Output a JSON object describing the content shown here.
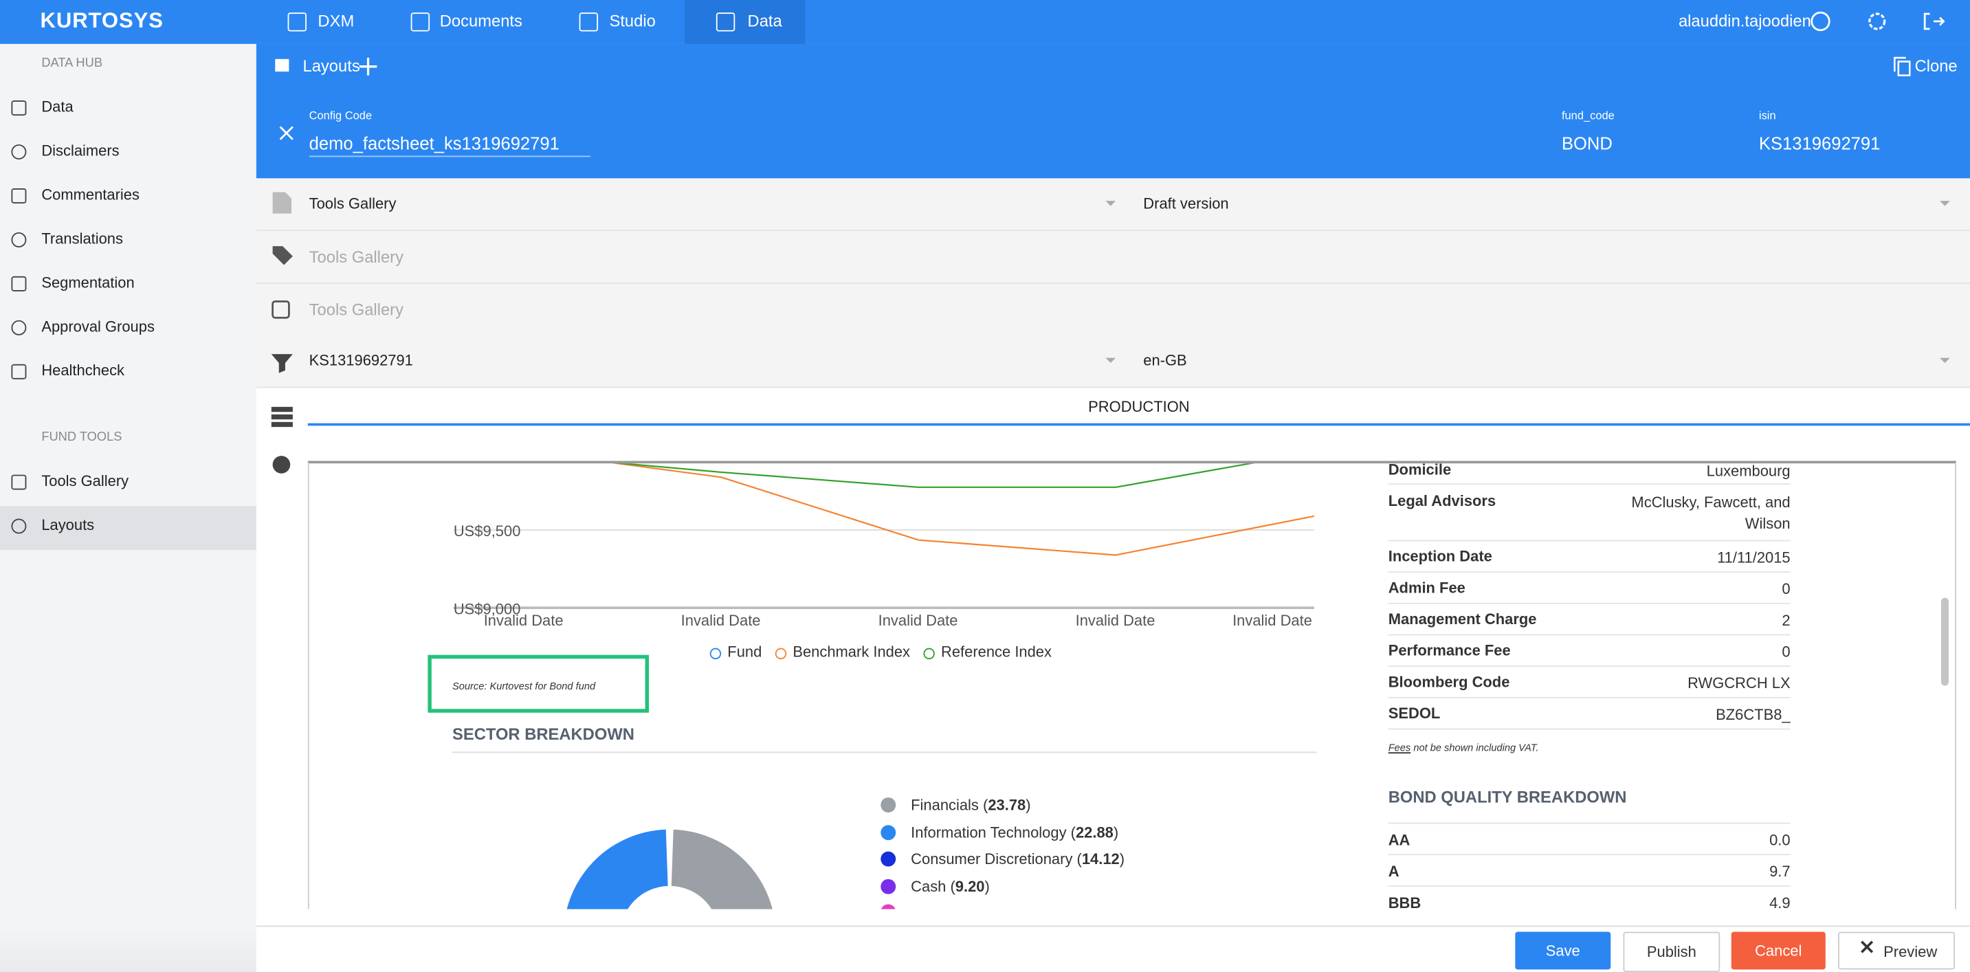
{
  "top_nav": {
    "logo": "KURTOSYS",
    "items": [
      "DXM",
      "Documents",
      "Studio",
      "Data"
    ],
    "user": "alauddin.tajoodien"
  },
  "sidebar": [
    {
      "title": "DATA HUB",
      "items": [
        "Data",
        "Disclaimers",
        "Commentaries",
        "Translations",
        "Segmentation",
        "Approval Groups",
        "Healthcheck"
      ]
    },
    {
      "title": "FUND TOOLS",
      "items": [
        "Tools Gallery",
        "Layouts"
      ]
    }
  ],
  "layouts_bar": {
    "title": "Layouts",
    "clone": "Clone"
  },
  "config": {
    "label": "Config Code",
    "value": "demo_factsheet_ks1319692791",
    "fields": [
      {
        "label": "fund_code",
        "value": "BOND"
      },
      {
        "label": "isin",
        "value": "KS1319692791"
      }
    ]
  },
  "form_rows": [
    {
      "left": "Tools Gallery",
      "right": "Draft version"
    },
    {
      "placeholder": "Tools Gallery"
    },
    {
      "placeholder": "Tools Gallery"
    },
    {
      "left": "KS1319692791",
      "right": "en-GB"
    }
  ],
  "tab": "PRODUCTION",
  "preview": {
    "chart": {
      "yticks": [
        "US$9,500",
        "US$9,000"
      ],
      "xlabels": [
        "Invalid Date",
        "Invalid Date",
        "Invalid Date",
        "Invalid Date",
        "Invalid Date"
      ],
      "legend": [
        "Fund",
        "Benchmark Index",
        "Reference Index"
      ]
    },
    "source": "Source: Kurtovest for Bond fund",
    "sector_title": "SECTOR BREAKDOWN",
    "sectors": [
      {
        "name": "Financials",
        "value": "23.78"
      },
      {
        "name": "Information Technology",
        "value": "22.88"
      },
      {
        "name": "Consumer Discretionary",
        "value": "14.12"
      },
      {
        "name": "Cash",
        "value": "9.20"
      }
    ],
    "details": [
      {
        "label": "Domicile",
        "value": "Luxembourg"
      },
      {
        "label": "Legal Advisors",
        "value": "McClusky, Fawcett, and Wilson"
      },
      {
        "label": "Inception Date",
        "value": "11/11/2015"
      },
      {
        "label": "Admin Fee",
        "value": "0"
      },
      {
        "label": "Management Charge",
        "value": "2"
      },
      {
        "label": "Performance Fee",
        "value": "0"
      },
      {
        "label": "Bloomberg Code",
        "value": "RWGCRCH LX"
      },
      {
        "label": "SEDOL",
        "value": "BZ6CTB8_"
      }
    ],
    "fees_note": {
      "link": "Fees",
      "text": "not be shown including VAT."
    },
    "bond_title": "BOND QUALITY BREAKDOWN",
    "bond_quality": [
      {
        "label": "AA",
        "value": "0.0"
      },
      {
        "label": "A",
        "value": "9.7"
      },
      {
        "label": "BBB",
        "value": "4.9"
      }
    ]
  },
  "actions": [
    "Save",
    "Publish",
    "Cancel",
    "Preview"
  ]
}
